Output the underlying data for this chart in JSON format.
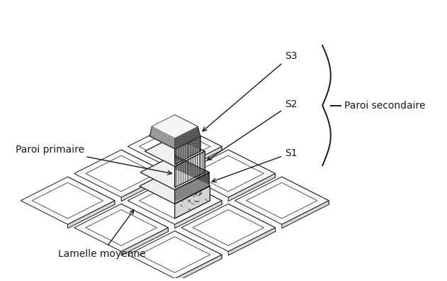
{
  "figsize": [
    6.31,
    3.96
  ],
  "dpi": 100,
  "bg_color": "#ffffff",
  "labels": {
    "S3": "S3",
    "S2": "S2",
    "S1": "S1",
    "paroi_secondaire": "Paroi secondaire",
    "paroi_primaire": "Paroi primaire",
    "lamelle_moyenne": "Lamelle moyenne"
  },
  "fontsize": 10,
  "line_color": "#1a1a1a"
}
